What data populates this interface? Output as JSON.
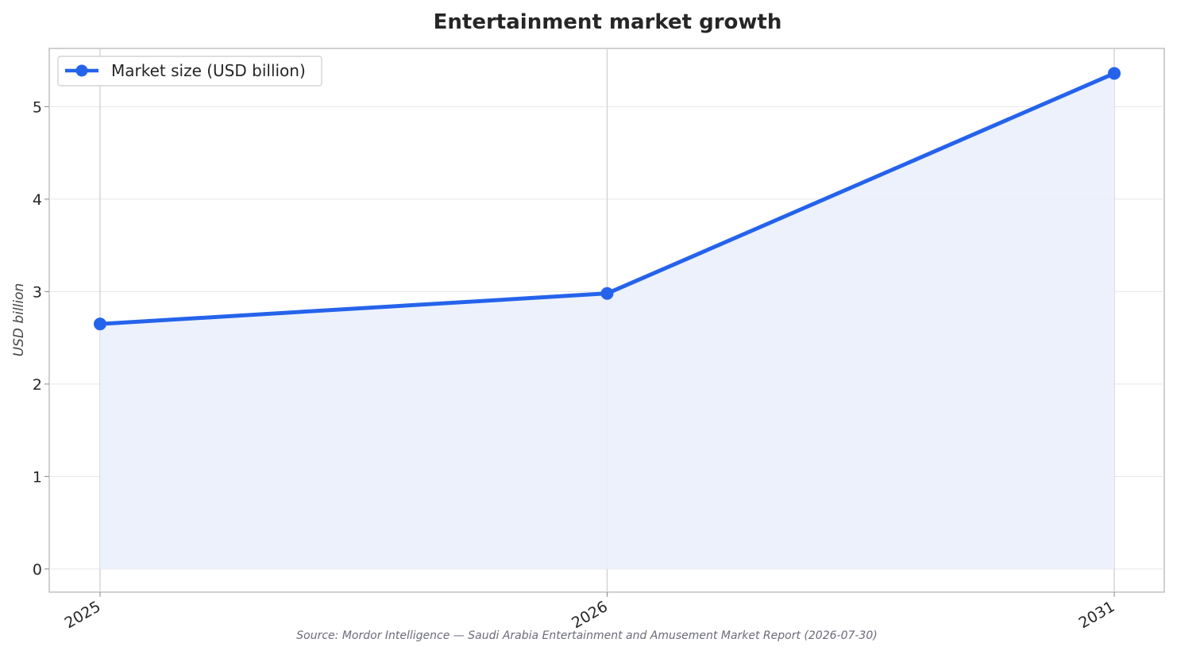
{
  "chart_data": {
    "type": "area",
    "title": "Entertainment market growth",
    "xlabel": "",
    "ylabel": "USD billion",
    "categories": [
      "2025",
      "2026",
      "2031"
    ],
    "series": [
      {
        "name": "Market size (USD billion)",
        "values": [
          2.65,
          2.98,
          5.36
        ]
      }
    ],
    "ylim": [
      -0.25,
      5.63
    ],
    "yticks": [
      0,
      1,
      2,
      3,
      4,
      5
    ],
    "grid": true,
    "legend": "top-left",
    "colors": {
      "line": "#2563eb",
      "fill": "#eaf0fc",
      "grid": "#e6e6e6",
      "frame": "#c0c0c0"
    },
    "source": "Source: Mordor Intelligence — Saudi Arabia Entertainment and Amusement Market Report (2026-07-30)"
  }
}
